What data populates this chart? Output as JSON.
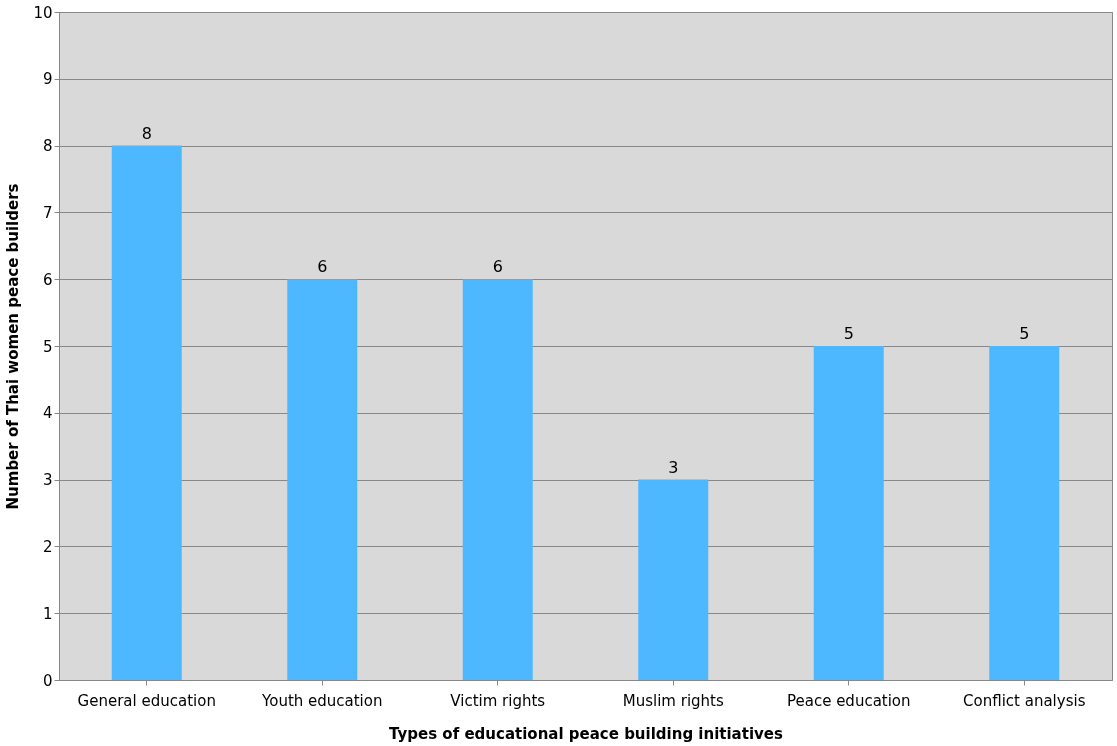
{
  "chart_data": {
    "type": "bar",
    "xlabel": "Types of educational peace building initiatives",
    "ylabel": "Number of Thai women peace builders",
    "categories": [
      "General education",
      "Youth education",
      "Victim rights",
      "Muslim rights",
      "Peace education",
      "Conflict analysis"
    ],
    "values": [
      8,
      6,
      6,
      3,
      5,
      5
    ],
    "color": "#4db8ff",
    "ylim": [
      0,
      10
    ],
    "yticks": [
      0,
      1,
      2,
      3,
      4,
      5,
      6,
      7,
      8,
      9,
      10
    ],
    "grid": "y",
    "data_labels": true
  }
}
